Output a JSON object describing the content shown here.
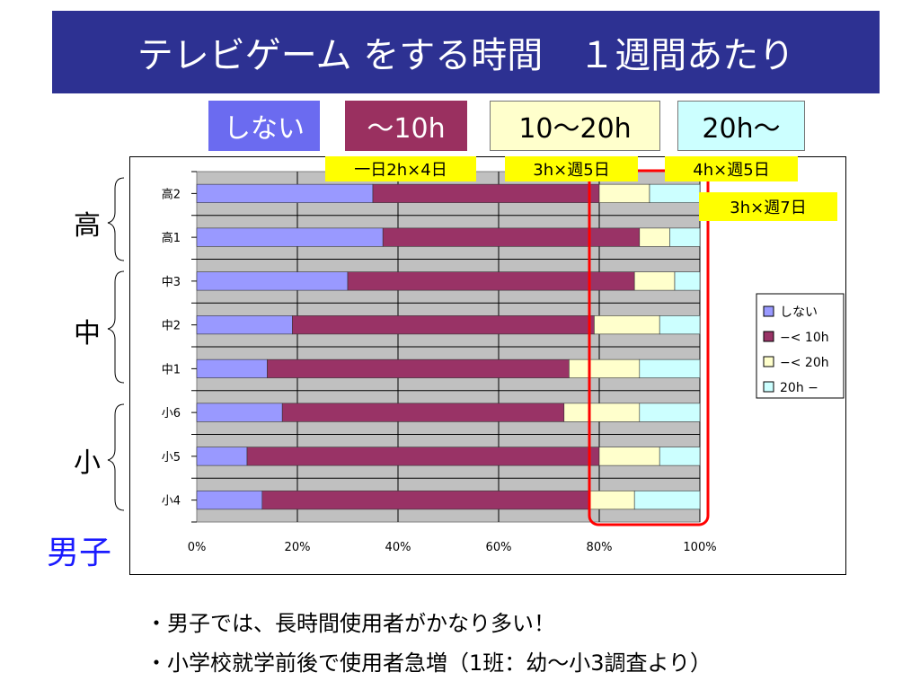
{
  "title": "テレビゲーム をする時間　１週間あたり",
  "categories_header": [
    {
      "label": "しない",
      "bg": "#6b6bf0",
      "fg": "#ffffff"
    },
    {
      "label": "～10h",
      "bg": "#9a3060",
      "fg": "#ffffff"
    },
    {
      "label": "10～20h",
      "bg": "#ffffcc",
      "fg": "#000000"
    },
    {
      "label": "20h～",
      "bg": "#ccffff",
      "fg": "#000000"
    }
  ],
  "notes": [
    "一日2h×4日",
    "3h×週5日",
    "4h×週5日",
    "3h×週7日"
  ],
  "groups": [
    "高",
    "中",
    "小"
  ],
  "boys_label": "男子",
  "bullets": [
    "・男子では、長時間使用者がかなり多い！",
    "・小学校就学前後で使用者急増（1班：幼～小3調査より）"
  ],
  "colors": {
    "title_bg": "#2d3192",
    "plot_bg": "#c0c0c0",
    "highlight": "#ff0000",
    "note_bg": "#ffff00",
    "series": [
      "#9999ff",
      "#993366",
      "#ffffcc",
      "#ccffff"
    ]
  },
  "chart_data": {
    "type": "bar",
    "orientation": "horizontal",
    "stacked": "percent",
    "categories": [
      "高2",
      "高1",
      "中3",
      "中2",
      "中1",
      "小6",
      "小5",
      "小4"
    ],
    "series": [
      {
        "name": "しない",
        "values": [
          35,
          37,
          30,
          19,
          14,
          17,
          10,
          13
        ]
      },
      {
        "name": "−< 10h",
        "values": [
          45,
          51,
          57,
          60,
          60,
          56,
          70,
          65
        ]
      },
      {
        "name": "−< 20h",
        "values": [
          10,
          6,
          8,
          13,
          14,
          15,
          12,
          9
        ]
      },
      {
        "name": "20h −",
        "values": [
          10,
          6,
          5,
          8,
          12,
          12,
          8,
          13
        ]
      }
    ],
    "xticks": [
      "0%",
      "20%",
      "40%",
      "60%",
      "80%",
      "100%"
    ],
    "xlim": [
      0,
      100
    ],
    "legend": "right",
    "grid": true
  }
}
